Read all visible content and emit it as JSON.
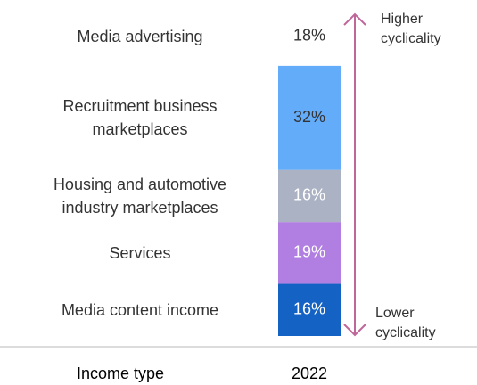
{
  "chart_data": {
    "type": "stacked_bar",
    "categories": [
      "Media advertising",
      "Recruitment business marketplaces",
      "Housing and automotive industry marketplaces",
      "Services",
      "Media content income"
    ],
    "values": [
      18,
      32,
      16,
      19,
      16
    ],
    "value_labels": [
      "18%",
      "32%",
      "16%",
      "19%",
      "16%"
    ],
    "colors": [
      "#ffffff",
      "#62acfa",
      "#aab2c4",
      "#b17ee2",
      "#1463c4"
    ],
    "label_colors": [
      "#333333",
      "#333333",
      "#ffffff",
      "#ffffff",
      "#ffffff"
    ],
    "x_label": "Income type",
    "period": "2022",
    "annotations": [
      "Higher cyclicality",
      "Lower cyclicality"
    ],
    "arrow_color": "#c0679a"
  }
}
